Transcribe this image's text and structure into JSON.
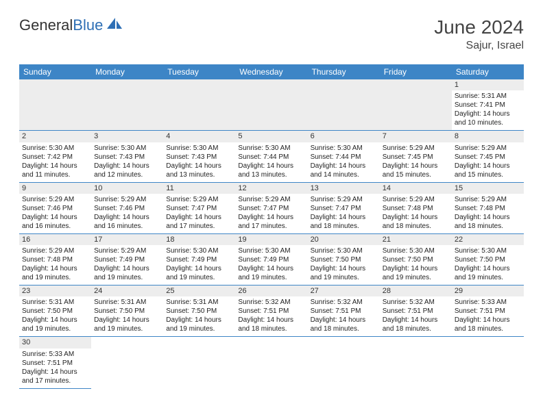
{
  "logo": {
    "text1": "General",
    "text2": "Blue"
  },
  "title": "June 2024",
  "location": "Sajur, Israel",
  "header_color": "#3d85c6",
  "divider_color": "#3d85c6",
  "empty_bg": "#ededed",
  "text_color": "#222222",
  "font_family": "Arial",
  "columns": [
    "Sunday",
    "Monday",
    "Tuesday",
    "Wednesday",
    "Thursday",
    "Friday",
    "Saturday"
  ],
  "leading_empty": 6,
  "days": [
    {
      "n": "1",
      "sunrise": "Sunrise: 5:31 AM",
      "sunset": "Sunset: 7:41 PM",
      "day1": "Daylight: 14 hours",
      "day2": "and 10 minutes."
    },
    {
      "n": "2",
      "sunrise": "Sunrise: 5:30 AM",
      "sunset": "Sunset: 7:42 PM",
      "day1": "Daylight: 14 hours",
      "day2": "and 11 minutes."
    },
    {
      "n": "3",
      "sunrise": "Sunrise: 5:30 AM",
      "sunset": "Sunset: 7:43 PM",
      "day1": "Daylight: 14 hours",
      "day2": "and 12 minutes."
    },
    {
      "n": "4",
      "sunrise": "Sunrise: 5:30 AM",
      "sunset": "Sunset: 7:43 PM",
      "day1": "Daylight: 14 hours",
      "day2": "and 13 minutes."
    },
    {
      "n": "5",
      "sunrise": "Sunrise: 5:30 AM",
      "sunset": "Sunset: 7:44 PM",
      "day1": "Daylight: 14 hours",
      "day2": "and 13 minutes."
    },
    {
      "n": "6",
      "sunrise": "Sunrise: 5:30 AM",
      "sunset": "Sunset: 7:44 PM",
      "day1": "Daylight: 14 hours",
      "day2": "and 14 minutes."
    },
    {
      "n": "7",
      "sunrise": "Sunrise: 5:29 AM",
      "sunset": "Sunset: 7:45 PM",
      "day1": "Daylight: 14 hours",
      "day2": "and 15 minutes."
    },
    {
      "n": "8",
      "sunrise": "Sunrise: 5:29 AM",
      "sunset": "Sunset: 7:45 PM",
      "day1": "Daylight: 14 hours",
      "day2": "and 15 minutes."
    },
    {
      "n": "9",
      "sunrise": "Sunrise: 5:29 AM",
      "sunset": "Sunset: 7:46 PM",
      "day1": "Daylight: 14 hours",
      "day2": "and 16 minutes."
    },
    {
      "n": "10",
      "sunrise": "Sunrise: 5:29 AM",
      "sunset": "Sunset: 7:46 PM",
      "day1": "Daylight: 14 hours",
      "day2": "and 16 minutes."
    },
    {
      "n": "11",
      "sunrise": "Sunrise: 5:29 AM",
      "sunset": "Sunset: 7:47 PM",
      "day1": "Daylight: 14 hours",
      "day2": "and 17 minutes."
    },
    {
      "n": "12",
      "sunrise": "Sunrise: 5:29 AM",
      "sunset": "Sunset: 7:47 PM",
      "day1": "Daylight: 14 hours",
      "day2": "and 17 minutes."
    },
    {
      "n": "13",
      "sunrise": "Sunrise: 5:29 AM",
      "sunset": "Sunset: 7:47 PM",
      "day1": "Daylight: 14 hours",
      "day2": "and 18 minutes."
    },
    {
      "n": "14",
      "sunrise": "Sunrise: 5:29 AM",
      "sunset": "Sunset: 7:48 PM",
      "day1": "Daylight: 14 hours",
      "day2": "and 18 minutes."
    },
    {
      "n": "15",
      "sunrise": "Sunrise: 5:29 AM",
      "sunset": "Sunset: 7:48 PM",
      "day1": "Daylight: 14 hours",
      "day2": "and 18 minutes."
    },
    {
      "n": "16",
      "sunrise": "Sunrise: 5:29 AM",
      "sunset": "Sunset: 7:48 PM",
      "day1": "Daylight: 14 hours",
      "day2": "and 19 minutes."
    },
    {
      "n": "17",
      "sunrise": "Sunrise: 5:29 AM",
      "sunset": "Sunset: 7:49 PM",
      "day1": "Daylight: 14 hours",
      "day2": "and 19 minutes."
    },
    {
      "n": "18",
      "sunrise": "Sunrise: 5:30 AM",
      "sunset": "Sunset: 7:49 PM",
      "day1": "Daylight: 14 hours",
      "day2": "and 19 minutes."
    },
    {
      "n": "19",
      "sunrise": "Sunrise: 5:30 AM",
      "sunset": "Sunset: 7:49 PM",
      "day1": "Daylight: 14 hours",
      "day2": "and 19 minutes."
    },
    {
      "n": "20",
      "sunrise": "Sunrise: 5:30 AM",
      "sunset": "Sunset: 7:50 PM",
      "day1": "Daylight: 14 hours",
      "day2": "and 19 minutes."
    },
    {
      "n": "21",
      "sunrise": "Sunrise: 5:30 AM",
      "sunset": "Sunset: 7:50 PM",
      "day1": "Daylight: 14 hours",
      "day2": "and 19 minutes."
    },
    {
      "n": "22",
      "sunrise": "Sunrise: 5:30 AM",
      "sunset": "Sunset: 7:50 PM",
      "day1": "Daylight: 14 hours",
      "day2": "and 19 minutes."
    },
    {
      "n": "23",
      "sunrise": "Sunrise: 5:31 AM",
      "sunset": "Sunset: 7:50 PM",
      "day1": "Daylight: 14 hours",
      "day2": "and 19 minutes."
    },
    {
      "n": "24",
      "sunrise": "Sunrise: 5:31 AM",
      "sunset": "Sunset: 7:50 PM",
      "day1": "Daylight: 14 hours",
      "day2": "and 19 minutes."
    },
    {
      "n": "25",
      "sunrise": "Sunrise: 5:31 AM",
      "sunset": "Sunset: 7:50 PM",
      "day1": "Daylight: 14 hours",
      "day2": "and 19 minutes."
    },
    {
      "n": "26",
      "sunrise": "Sunrise: 5:32 AM",
      "sunset": "Sunset: 7:51 PM",
      "day1": "Daylight: 14 hours",
      "day2": "and 18 minutes."
    },
    {
      "n": "27",
      "sunrise": "Sunrise: 5:32 AM",
      "sunset": "Sunset: 7:51 PM",
      "day1": "Daylight: 14 hours",
      "day2": "and 18 minutes."
    },
    {
      "n": "28",
      "sunrise": "Sunrise: 5:32 AM",
      "sunset": "Sunset: 7:51 PM",
      "day1": "Daylight: 14 hours",
      "day2": "and 18 minutes."
    },
    {
      "n": "29",
      "sunrise": "Sunrise: 5:33 AM",
      "sunset": "Sunset: 7:51 PM",
      "day1": "Daylight: 14 hours",
      "day2": "and 18 minutes."
    },
    {
      "n": "30",
      "sunrise": "Sunrise: 5:33 AM",
      "sunset": "Sunset: 7:51 PM",
      "day1": "Daylight: 14 hours",
      "day2": "and 17 minutes."
    }
  ]
}
